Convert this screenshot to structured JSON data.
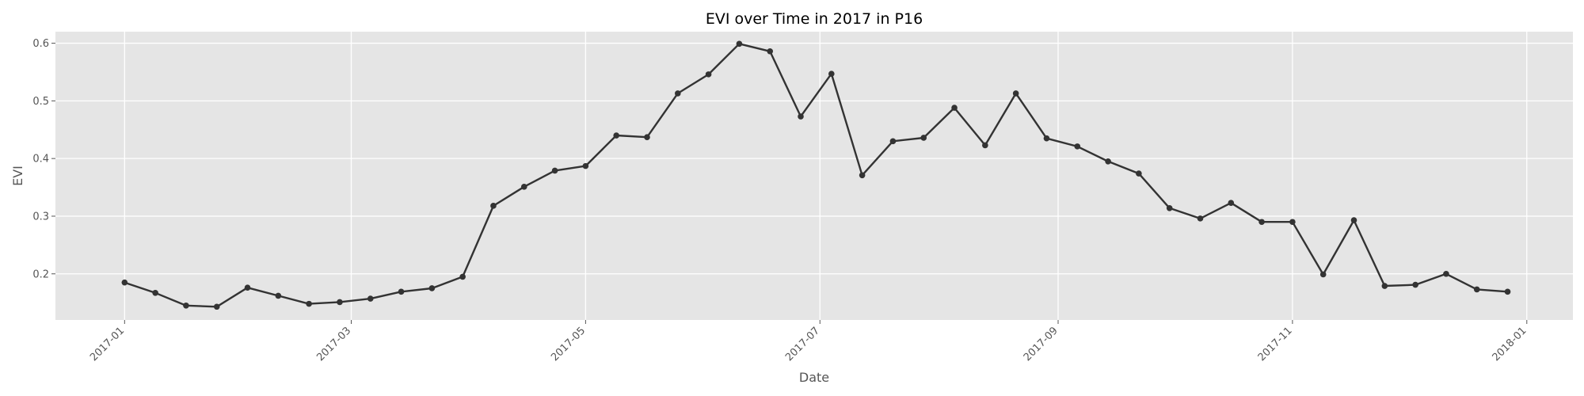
{
  "chart_data": {
    "type": "line",
    "title": "EVI over Time in 2017 in P16",
    "xlabel": "Date",
    "ylabel": "EVI",
    "x_ticks": [
      "2017-01",
      "2017-03",
      "2017-05",
      "2017-07",
      "2017-09",
      "2017-11",
      "2018-01"
    ],
    "y_ticks": [
      "0.2",
      "0.3",
      "0.4",
      "0.5",
      "0.6"
    ],
    "xlim": [
      "2016-12-14",
      "2018-01-13"
    ],
    "ylim": [
      0.12,
      0.62
    ],
    "grid": true,
    "series": [
      {
        "color": "#333333",
        "marker": "circle",
        "points": [
          [
            "2017-01-01",
            0.185
          ],
          [
            "2017-01-09",
            0.167
          ],
          [
            "2017-01-17",
            0.145
          ],
          [
            "2017-01-25",
            0.143
          ],
          [
            "2017-02-02",
            0.176
          ],
          [
            "2017-02-10",
            0.162
          ],
          [
            "2017-02-18",
            0.148
          ],
          [
            "2017-02-26",
            0.151
          ],
          [
            "2017-03-06",
            0.157
          ],
          [
            "2017-03-14",
            0.169
          ],
          [
            "2017-03-22",
            0.175
          ],
          [
            "2017-03-30",
            0.195
          ],
          [
            "2017-04-07",
            0.318
          ],
          [
            "2017-04-15",
            0.351
          ],
          [
            "2017-04-23",
            0.379
          ],
          [
            "2017-05-01",
            0.387
          ],
          [
            "2017-05-09",
            0.44
          ],
          [
            "2017-05-17",
            0.437
          ],
          [
            "2017-05-25",
            0.513
          ],
          [
            "2017-06-02",
            0.546
          ],
          [
            "2017-06-10",
            0.599
          ],
          [
            "2017-06-18",
            0.586
          ],
          [
            "2017-06-26",
            0.473
          ],
          [
            "2017-07-04",
            0.547
          ],
          [
            "2017-07-12",
            0.371
          ],
          [
            "2017-07-20",
            0.43
          ],
          [
            "2017-07-28",
            0.436
          ],
          [
            "2017-08-05",
            0.488
          ],
          [
            "2017-08-13",
            0.423
          ],
          [
            "2017-08-21",
            0.513
          ],
          [
            "2017-08-29",
            0.435
          ],
          [
            "2017-09-06",
            0.421
          ],
          [
            "2017-09-14",
            0.395
          ],
          [
            "2017-09-22",
            0.374
          ],
          [
            "2017-09-30",
            0.314
          ],
          [
            "2017-10-08",
            0.296
          ],
          [
            "2017-10-16",
            0.323
          ],
          [
            "2017-10-24",
            0.29
          ],
          [
            "2017-11-01",
            0.29
          ],
          [
            "2017-11-09",
            0.199
          ],
          [
            "2017-11-17",
            0.293
          ],
          [
            "2017-11-25",
            0.179
          ],
          [
            "2017-12-03",
            0.181
          ],
          [
            "2017-12-11",
            0.2
          ],
          [
            "2017-12-19",
            0.173
          ],
          [
            "2017-12-27",
            0.169
          ]
        ]
      }
    ]
  },
  "colors": {
    "plot_background": "#e5e5e5",
    "grid": "#ffffff",
    "line": "#333333",
    "text": "#555555"
  }
}
